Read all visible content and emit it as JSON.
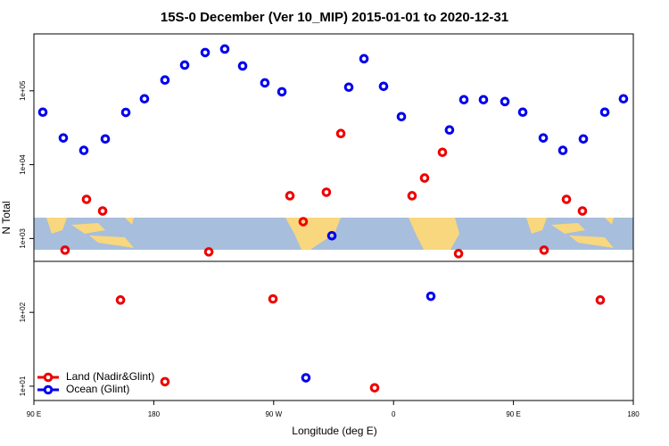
{
  "chart_data": {
    "type": "scatter",
    "title": "15S-0 December (Ver 10_MIP)   2015-01-01 to 2020-12-31",
    "x_label": "Longitude (deg E)",
    "y_label": "N Total",
    "log_y": true,
    "legend": "bottom-left",
    "xlim": [
      90,
      540
    ],
    "xticks": [
      {
        "value": 90,
        "label": "90 E"
      },
      {
        "value": 180,
        "label": "180"
      },
      {
        "value": 270,
        "label": "90 W"
      },
      {
        "value": 360,
        "label": "0"
      },
      {
        "value": 450,
        "label": "90 E"
      },
      {
        "value": 540,
        "label": "180"
      }
    ],
    "ylim": [
      6.4,
      590000
    ],
    "yticks": [
      {
        "value": 10,
        "label": "1e+01"
      },
      {
        "value": 100,
        "label": "1e+02"
      },
      {
        "value": 1000,
        "label": "1e+03"
      },
      {
        "value": 10000,
        "label": "1e+04"
      },
      {
        "value": 100000,
        "label": "1e+05"
      }
    ],
    "series": [
      {
        "name": "Land (Nadir&Glint)",
        "color": "#ee0000",
        "x": [
          113.4,
          129.5,
          141.6,
          155,
          188.4,
          221.3,
          269.5,
          282.2,
          292.2,
          309.6,
          320.4,
          345.8,
          373.9,
          383.3,
          396.7,
          408.8,
          473,
          489.8,
          501.8,
          515.2
        ],
        "values": [
          697,
          3390,
          2360,
          147,
          11.5,
          659,
          152,
          3790,
          1690,
          4230,
          26400,
          9.5,
          3790,
          6590,
          14700,
          624,
          697,
          3390,
          2360,
          147
        ]
      },
      {
        "name": "Ocean (Glint)",
        "color": "#0000ee",
        "x": [
          96.7,
          112.1,
          127.5,
          143.6,
          159,
          173,
          188.4,
          203.2,
          218.6,
          233.3,
          246.7,
          263.4,
          276.2,
          294.2,
          313.7,
          326.4,
          337.8,
          352.5,
          365.9,
          388,
          402,
          412.8,
          427.5,
          443.6,
          457,
          472.4,
          487.1,
          502.5,
          518.6,
          532.6
        ],
        "values": [
          51400,
          23000,
          15600,
          22300,
          51000,
          78000,
          140000,
          223000,
          330000,
          368000,
          217000,
          128000,
          97000,
          13,
          1090,
          112000,
          272000,
          115000,
          44700,
          165,
          29500,
          75800,
          75800,
          71600,
          51400,
          23000,
          15600,
          22300,
          51400,
          78000
        ]
      }
    ]
  }
}
